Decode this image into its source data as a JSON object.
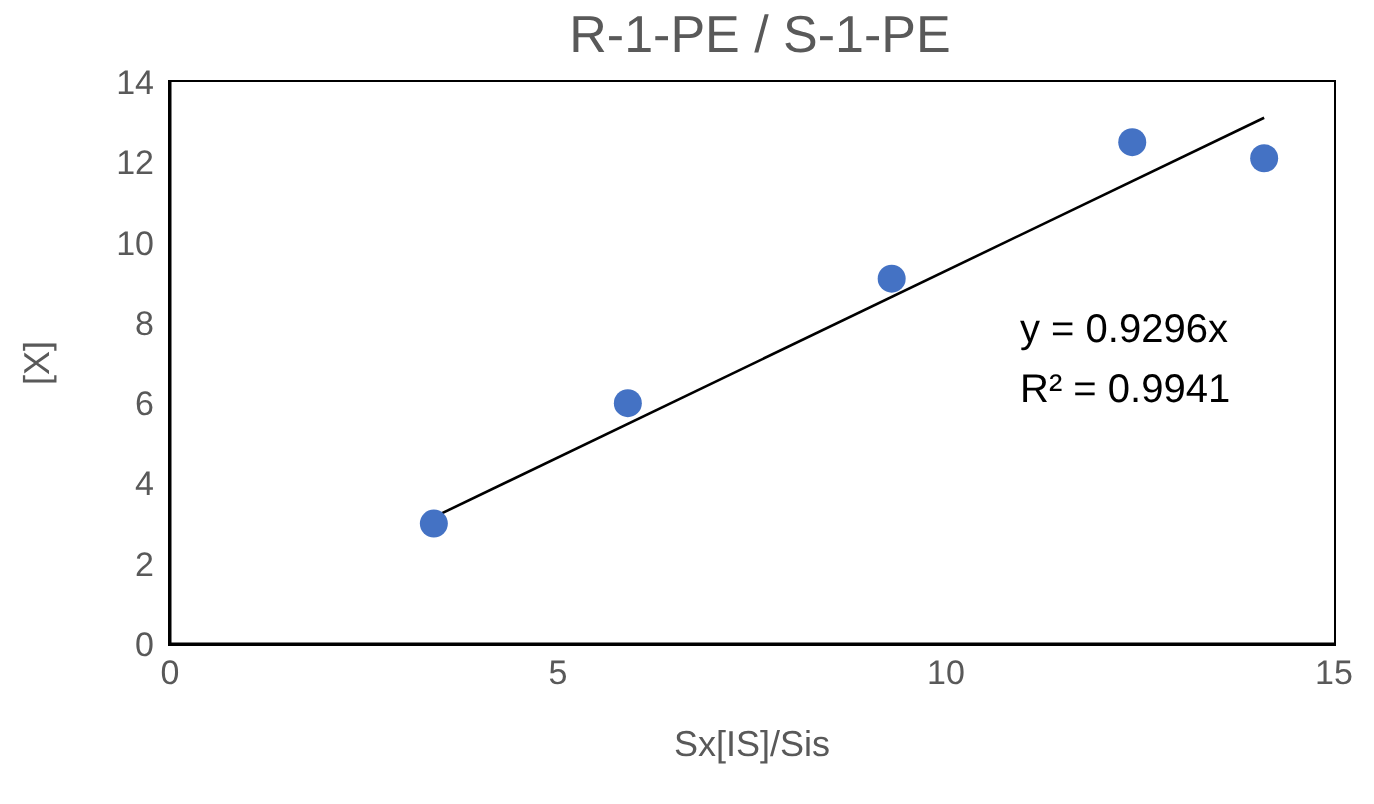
{
  "chart_data": {
    "type": "scatter",
    "title": "R-1-PE / S-1-PE",
    "xlabel": "Sx[IS]/Sis",
    "ylabel": "[X]",
    "xlim": [
      0,
      15
    ],
    "xticks": [
      0,
      5,
      10,
      15
    ],
    "ylim": [
      0,
      14
    ],
    "yticks": [
      0,
      2,
      4,
      6,
      8,
      10,
      12,
      14
    ],
    "grid": false,
    "legend": false,
    "marker": "circle",
    "series": [
      {
        "type": "scatter",
        "color": "#4472c4",
        "x": [
          3.4,
          5.9,
          9.3,
          12.4,
          14.1
        ],
        "values": [
          3,
          6,
          9.1,
          12.5,
          12.1
        ]
      },
      {
        "type": "line",
        "color": "#000000",
        "marker": "none",
        "line_style": "solid",
        "x": [
          3.4,
          14.1
        ],
        "values": [
          3.16,
          13.11
        ]
      }
    ],
    "annotations": [
      "y = 0.9296x",
      "R² = 0.9941"
    ]
  }
}
